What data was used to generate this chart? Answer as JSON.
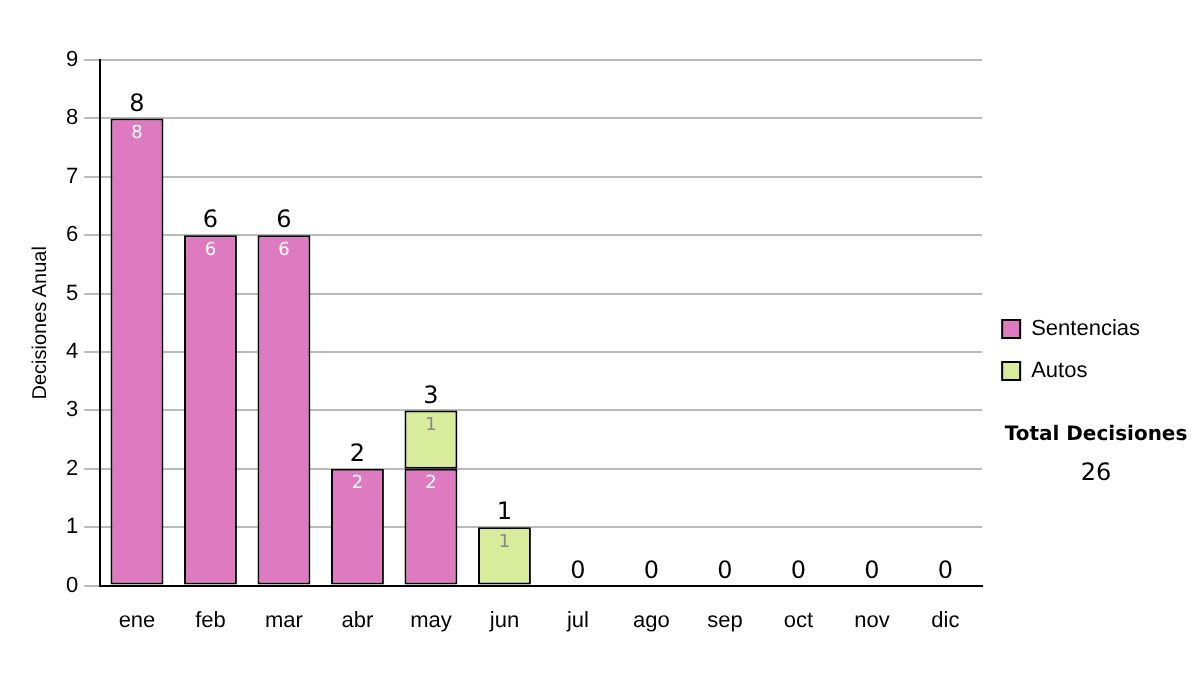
{
  "chart_data": {
    "type": "bar",
    "ylabel": "Decisiones Anual",
    "categories": [
      "ene",
      "feb",
      "mar",
      "abr",
      "may",
      "jun",
      "jul",
      "ago",
      "sep",
      "oct",
      "nov",
      "dic"
    ],
    "series": [
      {
        "name": "Sentencias",
        "color": "#dd7ac0",
        "values": [
          8,
          6,
          6,
          2,
          2,
          0,
          0,
          0,
          0,
          0,
          0,
          0
        ],
        "value_labels": [
          "8",
          "6",
          "6",
          "2",
          "2",
          null,
          null,
          null,
          null,
          null,
          null,
          null
        ]
      },
      {
        "name": "Autos",
        "color": "#d8ec9c",
        "values": [
          0,
          0,
          0,
          0,
          1,
          1,
          0,
          0,
          0,
          0,
          0,
          0
        ],
        "value_labels": [
          null,
          null,
          null,
          null,
          "1",
          "1",
          null,
          null,
          null,
          null,
          null,
          null
        ]
      }
    ],
    "stacked": true,
    "totals": [
      "8",
      "6",
      "6",
      "2",
      "3",
      "1",
      "0",
      "0",
      "0",
      "0",
      "0",
      "0"
    ],
    "ylim": [
      0,
      9
    ],
    "yticks": [
      0,
      1,
      2,
      3,
      4,
      5,
      6,
      7,
      8,
      9
    ],
    "grid": "y",
    "legend": "right",
    "annotations": [
      "Total Decisiones",
      "26"
    ]
  }
}
